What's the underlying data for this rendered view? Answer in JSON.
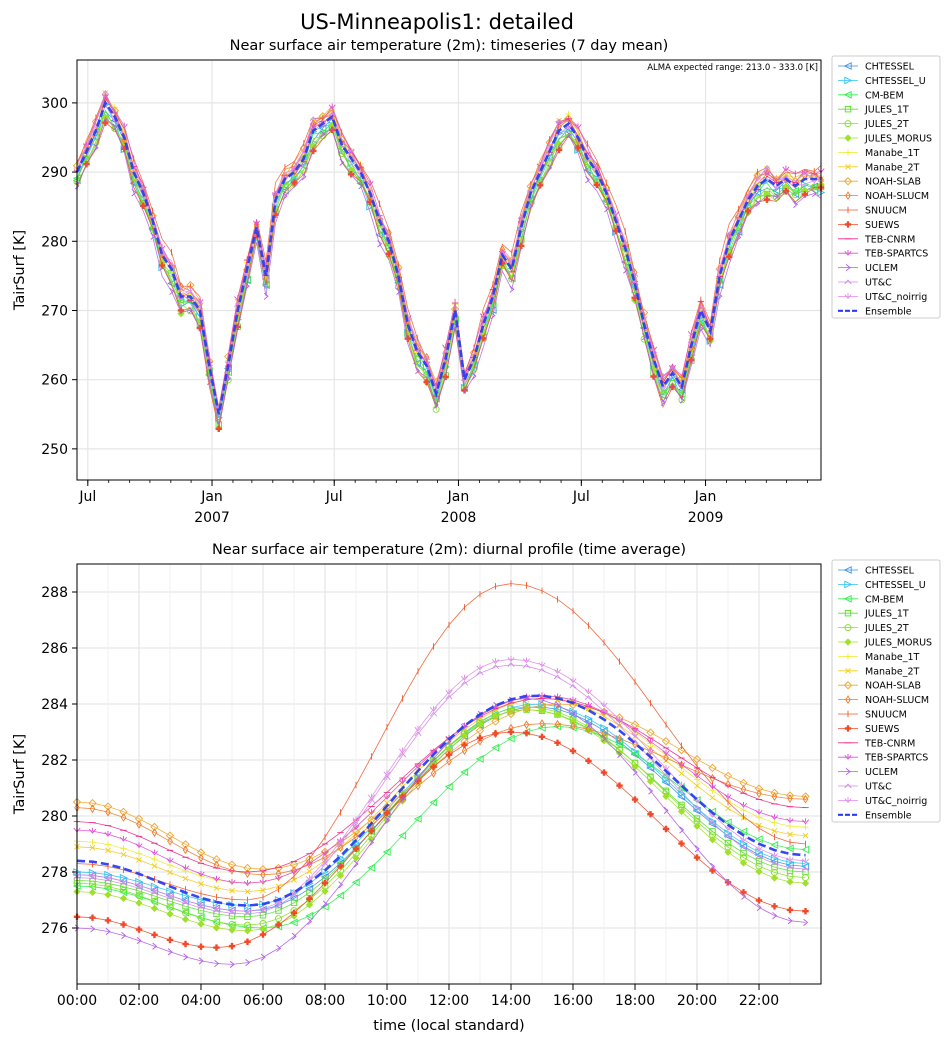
{
  "figure": {
    "title": "US-Minneapolis1: detailed"
  },
  "series_style": [
    {
      "name": "CHTESSEL",
      "color": "#3a8fe8",
      "marker": "tri-left"
    },
    {
      "name": "CHTESSEL_U",
      "color": "#2ec2f0",
      "marker": "tri-right"
    },
    {
      "name": "CM-BEM",
      "color": "#2ef04a",
      "marker": "tri-left"
    },
    {
      "name": "JULES_1T",
      "color": "#59e02a",
      "marker": "square"
    },
    {
      "name": "JULES_2T",
      "color": "#82e02a",
      "marker": "hexagon"
    },
    {
      "name": "JULES_MORUS",
      "color": "#9ee02a",
      "marker": "diamond-filled"
    },
    {
      "name": "Manabe_1T",
      "color": "#ecec3a",
      "marker": "plus"
    },
    {
      "name": "Manabe_2T",
      "color": "#f2cc1a",
      "marker": "x"
    },
    {
      "name": "NOAH-SLAB",
      "color": "#f0a52a",
      "marker": "diamond"
    },
    {
      "name": "NOAH-SLUCM",
      "color": "#f07a2a",
      "marker": "diamond-thin"
    },
    {
      "name": "SNUUCM",
      "color": "#f05a2a",
      "marker": "vline"
    },
    {
      "name": "SUEWS",
      "color": "#f04a2a",
      "marker": "plus-filled"
    },
    {
      "name": "TEB-CNRM",
      "color": "#f02a8a",
      "marker": "hline"
    },
    {
      "name": "TEB-SPARTCS",
      "color": "#e04ad8",
      "marker": "tri-down-line"
    },
    {
      "name": "UCLEM",
      "color": "#b05ae8",
      "marker": "tri-right-line"
    },
    {
      "name": "UT&C",
      "color": "#d08ae8",
      "marker": "tri-up-line"
    },
    {
      "name": "UT&C_noirrig",
      "color": "#e08ae8",
      "marker": "tri-down-line"
    },
    {
      "name": "Ensemble",
      "color": "#2a3ef0",
      "marker": "dash"
    }
  ],
  "chart_data": [
    {
      "type": "line",
      "title": "Near surface air temperature (2m): timeseries (7 day mean)",
      "ylabel": "TairSurf [K]",
      "xlabel": "",
      "annotation": "ALMA expected range: 213.0 - 333.0 [K]",
      "ylim": [
        245.5,
        306.2
      ],
      "yticks": [
        250,
        260,
        270,
        280,
        290,
        300
      ],
      "xlim": [
        "2006-06-15",
        "2009-06-21"
      ],
      "xticks": [
        {
          "date": "2006-07-01",
          "label": "Jul",
          "sub": ""
        },
        {
          "date": "2007-01-01",
          "label": "Jan",
          "sub": "2007"
        },
        {
          "date": "2007-07-01",
          "label": "Jul",
          "sub": ""
        },
        {
          "date": "2008-01-01",
          "label": "Jan",
          "sub": "2008"
        },
        {
          "date": "2008-07-01",
          "label": "Jul",
          "sub": ""
        },
        {
          "date": "2009-01-01",
          "label": "Jan",
          "sub": "2009"
        }
      ],
      "grid": true,
      "legend": "outside-right",
      "ensemble": {
        "x": [
          "2006-06-15",
          "2006-06-29",
          "2006-07-13",
          "2006-07-27",
          "2006-08-10",
          "2006-08-24",
          "2006-09-07",
          "2006-09-21",
          "2006-10-05",
          "2006-10-19",
          "2006-11-02",
          "2006-11-16",
          "2006-11-30",
          "2006-12-14",
          "2006-12-28",
          "2007-01-11",
          "2007-01-25",
          "2007-02-08",
          "2007-02-22",
          "2007-03-08",
          "2007-03-22",
          "2007-04-05",
          "2007-04-19",
          "2007-05-03",
          "2007-05-17",
          "2007-05-31",
          "2007-06-14",
          "2007-06-28",
          "2007-07-12",
          "2007-07-26",
          "2007-08-09",
          "2007-08-23",
          "2007-09-06",
          "2007-09-20",
          "2007-10-04",
          "2007-10-18",
          "2007-11-01",
          "2007-11-15",
          "2007-11-29",
          "2007-12-13",
          "2007-12-27",
          "2008-01-10",
          "2008-01-24",
          "2008-02-07",
          "2008-02-21",
          "2008-03-06",
          "2008-03-20",
          "2008-04-03",
          "2008-04-17",
          "2008-05-01",
          "2008-05-15",
          "2008-05-29",
          "2008-06-12",
          "2008-06-26",
          "2008-07-10",
          "2008-07-24",
          "2008-08-07",
          "2008-08-21",
          "2008-09-04",
          "2008-09-18",
          "2008-10-02",
          "2008-10-16",
          "2008-10-30",
          "2008-11-13",
          "2008-11-27",
          "2008-12-11",
          "2008-12-25",
          "2009-01-08",
          "2009-01-22",
          "2009-02-05",
          "2009-02-19",
          "2009-03-05",
          "2009-03-19",
          "2009-04-02",
          "2009-04-16",
          "2009-04-30",
          "2009-05-14",
          "2009-05-28",
          "2009-06-11",
          "2009-06-21"
        ],
        "y": [
          290,
          293,
          296,
          300,
          298,
          295,
          290,
          287,
          283,
          278,
          276,
          272,
          272,
          270,
          262,
          255,
          262,
          270,
          276,
          282,
          275,
          286,
          289,
          290,
          292,
          296,
          297,
          298,
          294,
          292,
          290,
          287,
          283,
          280,
          275,
          268,
          264,
          262,
          258,
          263,
          270,
          260,
          263,
          268,
          272,
          278,
          276,
          282,
          287,
          290,
          293,
          296,
          297,
          295,
          292,
          290,
          287,
          283,
          279,
          274,
          268,
          263,
          259,
          261,
          259,
          265,
          270,
          267,
          275,
          280,
          283,
          286,
          288,
          289,
          288,
          289,
          288,
          289,
          289,
          289
        ]
      },
      "series_offsets": {
        "CHTESSEL": -1.2,
        "CHTESSEL_U": -1.0,
        "CM-BEM": -0.8,
        "JULES_1T": -1.5,
        "JULES_2T": -1.3,
        "JULES_MORUS": -1.6,
        "Manabe_1T": 0.4,
        "Manabe_2T": 0.6,
        "NOAH-SLAB": 0.8,
        "NOAH-SLUCM": 0.5,
        "SNUUCM": 1.6,
        "SUEWS": -2.0,
        "TEB-CNRM": 0.3,
        "TEB-SPARTCS": 0.9,
        "UCLEM": -2.4,
        "UT&C": 0.7,
        "UT&C_noirrig": 0.2
      }
    },
    {
      "type": "line",
      "title": "Near surface air temperature (2m): diurnal profile (time average)",
      "ylabel": "TairSurf [K]",
      "xlabel": "time (local standard)",
      "ylim": [
        274.0,
        289.0
      ],
      "yticks": [
        276,
        278,
        280,
        282,
        284,
        286,
        288
      ],
      "xlim": [
        0,
        24
      ],
      "xticks": [
        "00:00",
        "02:00",
        "04:00",
        "06:00",
        "08:00",
        "10:00",
        "12:00",
        "14:00",
        "16:00",
        "18:00",
        "20:00",
        "22:00"
      ],
      "grid": true,
      "legend": "outside-right",
      "x_hours_step": 0.5,
      "series_profiles": [
        {
          "name": "CHTESSEL",
          "start": 277.9,
          "min": 276.6,
          "minh": 5.5,
          "max": 283.9,
          "maxh": 14.8,
          "end": 278.2
        },
        {
          "name": "CHTESSEL_U",
          "start": 278.0,
          "min": 276.8,
          "minh": 5.5,
          "max": 284.0,
          "maxh": 14.8,
          "end": 278.3
        },
        {
          "name": "CM-BEM",
          "start": 277.5,
          "min": 276.0,
          "minh": 6.0,
          "max": 283.2,
          "maxh": 15.5,
          "end": 278.8
        },
        {
          "name": "JULES_1T",
          "start": 277.7,
          "min": 276.4,
          "minh": 5.5,
          "max": 283.8,
          "maxh": 14.5,
          "end": 278.0
        },
        {
          "name": "JULES_2T",
          "start": 277.6,
          "min": 276.1,
          "minh": 5.5,
          "max": 283.9,
          "maxh": 14.5,
          "end": 277.8
        },
        {
          "name": "JULES_MORUS",
          "start": 277.3,
          "min": 275.9,
          "minh": 5.5,
          "max": 283.8,
          "maxh": 14.5,
          "end": 277.6
        },
        {
          "name": "Manabe_1T",
          "start": 279.1,
          "min": 277.6,
          "minh": 5.5,
          "max": 284.3,
          "maxh": 15.0,
          "end": 279.6
        },
        {
          "name": "Manabe_2T",
          "start": 278.9,
          "min": 277.3,
          "minh": 5.5,
          "max": 284.2,
          "maxh": 15.0,
          "end": 279.3
        },
        {
          "name": "NOAH-SLAB",
          "start": 280.5,
          "min": 278.1,
          "minh": 6.0,
          "max": 284.0,
          "maxh": 15.5,
          "end": 280.7
        },
        {
          "name": "NOAH-SLUCM",
          "start": 280.3,
          "min": 277.9,
          "minh": 6.0,
          "max": 283.3,
          "maxh": 15.0,
          "end": 280.6
        },
        {
          "name": "SNUUCM",
          "start": 278.3,
          "min": 277.0,
          "minh": 5.5,
          "max": 288.3,
          "maxh": 14.0,
          "end": 279.0
        },
        {
          "name": "SUEWS",
          "start": 276.4,
          "min": 275.3,
          "minh": 4.5,
          "max": 283.0,
          "maxh": 14.0,
          "end": 276.6
        },
        {
          "name": "TEB-CNRM",
          "start": 279.8,
          "min": 278.0,
          "minh": 5.5,
          "max": 284.2,
          "maxh": 15.0,
          "end": 280.3
        },
        {
          "name": "TEB-SPARTCS",
          "start": 279.5,
          "min": 277.6,
          "minh": 5.5,
          "max": 284.3,
          "maxh": 15.0,
          "end": 279.8
        },
        {
          "name": "UCLEM",
          "start": 276.0,
          "min": 274.7,
          "minh": 5.0,
          "max": 284.2,
          "maxh": 14.5,
          "end": 276.2
        },
        {
          "name": "UT&C",
          "start": 277.8,
          "min": 276.5,
          "minh": 5.5,
          "max": 285.4,
          "maxh": 14.0,
          "end": 278.1
        },
        {
          "name": "UT&C_noirrig",
          "start": 277.9,
          "min": 276.6,
          "minh": 5.5,
          "max": 285.6,
          "maxh": 14.0,
          "end": 278.4
        },
        {
          "name": "Ensemble",
          "start": 278.4,
          "min": 276.8,
          "minh": 5.5,
          "max": 284.3,
          "maxh": 14.8,
          "end": 278.6
        }
      ]
    }
  ]
}
